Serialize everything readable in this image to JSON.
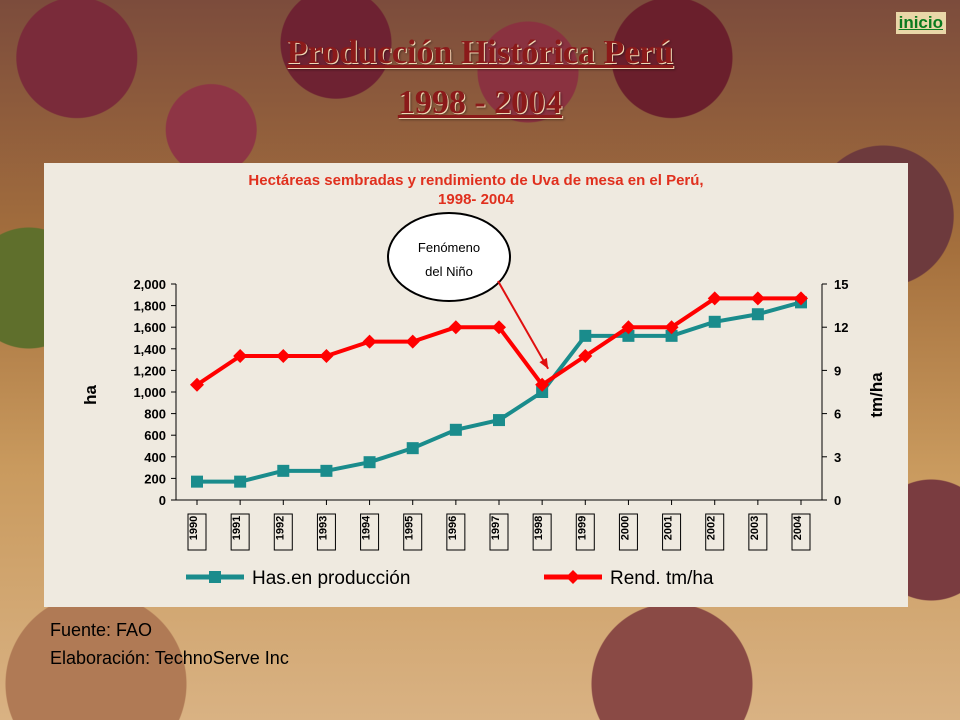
{
  "nav": {
    "home_link": "inicio"
  },
  "page": {
    "title": "Producción Histórica Perú",
    "subtitle": "1998 - 2004"
  },
  "footer": {
    "source": "Fuente: FAO",
    "prepared_by": "Elaboración: TechnoServe Inc"
  },
  "chart_data": {
    "type": "line",
    "title_line1": "Hectáreas sembradas y rendimiento de Uva de mesa en el Perú,",
    "title_line2": "1998- 2004",
    "categories": [
      "1990",
      "1991",
      "1992",
      "1993",
      "1994",
      "1995",
      "1996",
      "1997",
      "1998",
      "1999",
      "2000",
      "2001",
      "2002",
      "2003",
      "2004"
    ],
    "ylabel_left": "ha",
    "ylabel_right": "tm/ha",
    "ylim_left": [
      0,
      2000
    ],
    "ylim_right": [
      0,
      15
    ],
    "yticks_left": [
      "0",
      "200",
      "400",
      "600",
      "800",
      "1,000",
      "1,200",
      "1,400",
      "1,600",
      "1,800",
      "2,000"
    ],
    "yticks_right": [
      "0",
      "3",
      "6",
      "9",
      "12",
      "15"
    ],
    "series": [
      {
        "name": "Has.en producción",
        "axis": "left",
        "color": "#1a8c8c",
        "marker": "square",
        "values": [
          170,
          170,
          270,
          270,
          350,
          480,
          650,
          740,
          1000,
          1520,
          1520,
          1520,
          1650,
          1720,
          1830
        ]
      },
      {
        "name": "Rend. tm/ha",
        "axis": "right",
        "color": "#ff0000",
        "marker": "diamond",
        "values": [
          8,
          10,
          10,
          10,
          11,
          11,
          12,
          12,
          8,
          10,
          12,
          12,
          14,
          14,
          14
        ]
      }
    ],
    "annotation": {
      "line1": "Fenómeno",
      "line2": "del Niño",
      "points_to": "1998"
    },
    "title_color": "#e0301e"
  }
}
